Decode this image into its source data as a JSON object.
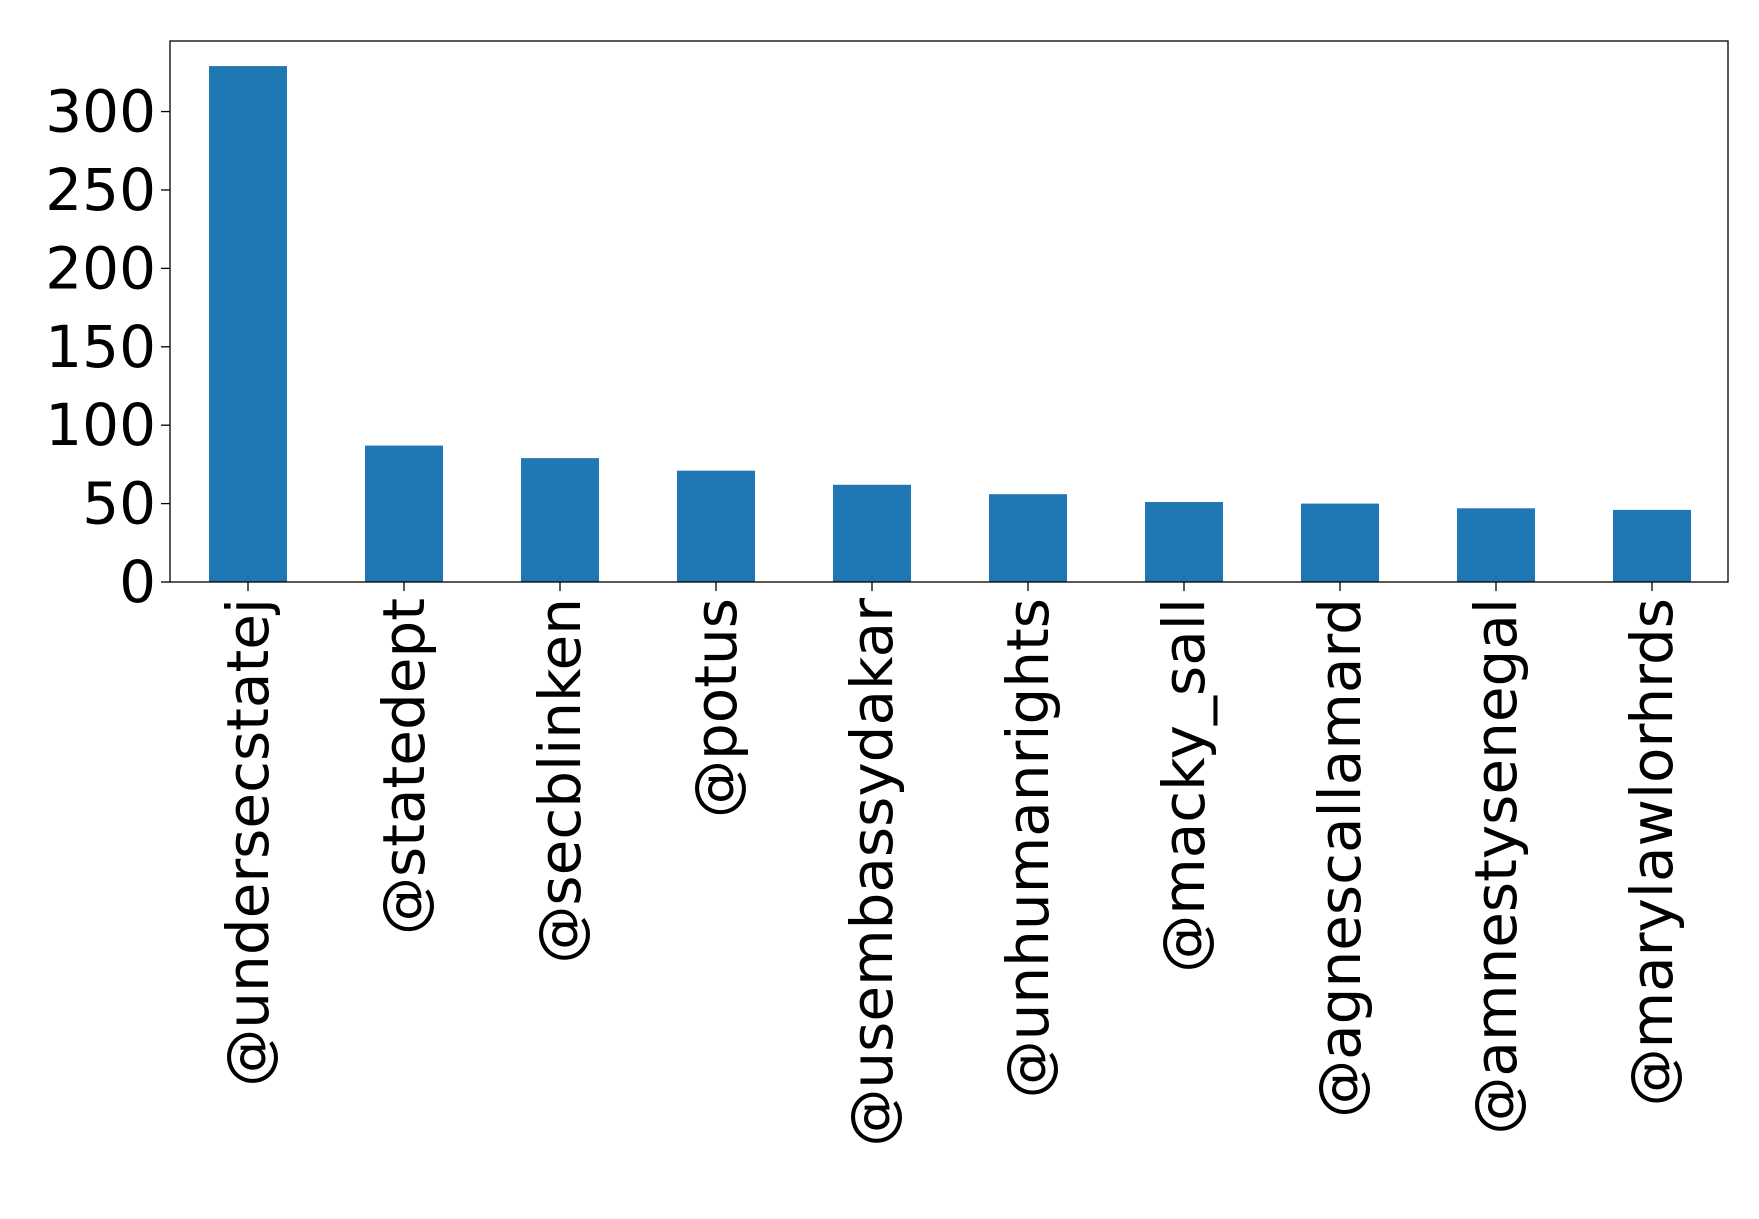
{
  "chart_data": {
    "type": "bar",
    "title": "",
    "xlabel": "",
    "ylabel": "",
    "categories": [
      "@undersecstatej",
      "@statedept",
      "@secblinken",
      "@potus",
      "@usembassydakar",
      "@unhumanrights",
      "@macky_sall",
      "@agnescallamard",
      "@amnestysenegal",
      "@marylawlorhrds"
    ],
    "values": [
      329,
      87,
      79,
      71,
      62,
      56,
      51,
      50,
      47,
      46
    ],
    "ylim": [
      0,
      345
    ],
    "yticks": [
      0,
      50,
      100,
      150,
      200,
      250,
      300
    ],
    "ytick_labels": [
      "0",
      "50",
      "100",
      "150",
      "200",
      "250",
      "300"
    ],
    "bar_color": "#1f77b4",
    "grid": false,
    "legend": "none"
  }
}
